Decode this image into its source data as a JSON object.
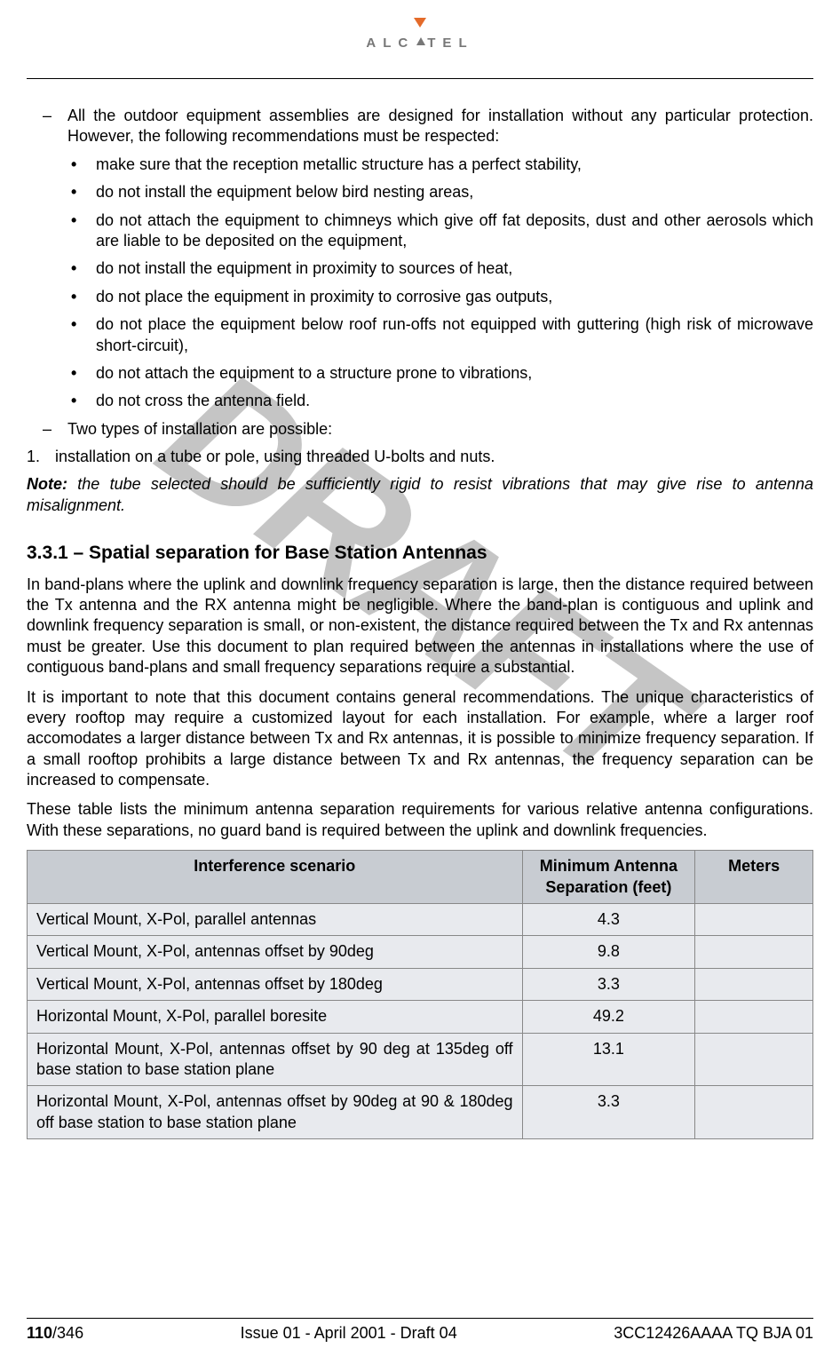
{
  "brand": {
    "name": "ALCATEL"
  },
  "watermark": "DRAFT",
  "body": {
    "dash1": "All the outdoor equipment assemblies are designed for installation without any particular protection. However, the following recommendations must be respected:",
    "bullets": [
      "make sure that the reception metallic structure has a perfect stability,",
      "do not install the equipment below bird nesting areas,",
      "do not attach the equipment to chimneys which give off fat deposits, dust and other aerosols which are liable to be deposited on the equipment,",
      "do not install the equipment in proximity to sources of heat,",
      "do not place the equipment in proximity to corrosive gas outputs,",
      "do not place the equipment below roof run-offs not equipped with guttering (high risk of microwave short-circuit),",
      "do not attach the equipment to a structure prone to vibrations,",
      "do not cross the antenna field."
    ],
    "dash2": "Two types of installation are possible:",
    "num1_marker": "1.",
    "num1": "installation on a tube or pole, using threaded U-bolts and nuts.",
    "note_label": "Note:",
    "note_text": " the tube selected should be sufficiently rigid to resist vibrations that may give rise to antenna misalignment.",
    "heading": "3.3.1 –  Spatial separation for Base Station Antennas",
    "p1": "In band-plans where the uplink and downlink frequency separation is large, then the distance required between the Tx antenna and the RX antenna might be negligible. Where the band-plan is contiguous and uplink and downlink frequency separation is small, or non-existent, the distance required between the Tx and Rx antennas must be greater. Use this document to plan required between the antennas in installations where the use of contiguous band-plans and small frequency separations require a substantial.",
    "p2": "It is important to note that this document contains general recommendations. The unique characteristics of every rooftop may require a customized layout for each installation. For example, where a larger roof accomodates a larger distance between Tx and Rx antennas, it is possible to minimize frequency separation. If a small rooftop prohibits a large distance between Tx and Rx antennas, the frequency separation can be increased to compensate.",
    "p3": "These table lists the minimum antenna separation requirements for various relative antenna configurations. With these separations, no guard band is required between the uplink and downlink frequencies."
  },
  "table": {
    "header_bg": "#c8ccd2",
    "row_bg": "#e8eaee",
    "columns": [
      "Interference scenario",
      "Minimum Antenna Separation (feet)",
      "Meters"
    ],
    "col_widths": [
      "63%",
      "22%",
      "15%"
    ],
    "rows": [
      {
        "scenario": "Vertical Mount, X-Pol, parallel antennas",
        "feet": "4.3",
        "meters": ""
      },
      {
        "scenario": "Vertical Mount, X-Pol, antennas offset by 90deg",
        "feet": "9.8",
        "meters": ""
      },
      {
        "scenario": "Vertical Mount, X-Pol, antennas offset by 180deg",
        "feet": "3.3",
        "meters": ""
      },
      {
        "scenario": "Horizontal Mount, X-Pol, parallel boresite",
        "feet": "49.2",
        "meters": ""
      },
      {
        "scenario": "Horizontal Mount, X-Pol, antennas offset by 90 deg at 135deg off base station to base station plane",
        "feet": "13.1",
        "meters": ""
      },
      {
        "scenario": "Horizontal Mount, X-Pol, antennas offset by 90deg at 90 & 180deg off base station to base station plane",
        "feet": "3.3",
        "meters": ""
      }
    ]
  },
  "footer": {
    "page_current": "110",
    "page_total": "/346",
    "center": "Issue 01 - April 2001 - Draft 04",
    "right": "3CC12426AAAA TQ BJA 01"
  }
}
